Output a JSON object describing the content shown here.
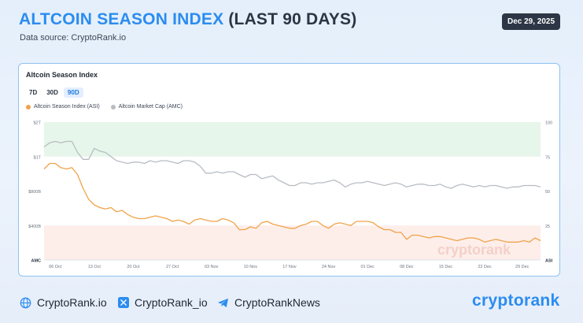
{
  "header": {
    "title_accent": "ALTCOIN SEASON INDEX",
    "title_rest": "(LAST 90 DAYS)",
    "source": "Data source: CryptoRank.io",
    "date": "Dec 29, 2025"
  },
  "card": {
    "title": "Altcoin Season Index",
    "ranges": [
      "7D",
      "30D",
      "90D"
    ],
    "active_range": "90D"
  },
  "colors": {
    "asi": "#f0a34a",
    "amc": "#b8bdc3",
    "accent": "#2b8cf0",
    "green_zone": "#e7f6ea",
    "red_zone": "#fdeeea"
  },
  "chart_data": {
    "type": "line",
    "legend_placement": "top-left",
    "left_axis": {
      "label": "AMC",
      "ticks": [
        "$2T",
        "$1T",
        "$800B",
        "$400B"
      ]
    },
    "right_axis": {
      "label": "ASI",
      "ticks": [
        "100",
        "75",
        "50",
        "25"
      ],
      "ylim": [
        0,
        100
      ]
    },
    "x_ticks": [
      "06 Oct",
      "13 Oct",
      "20 Oct",
      "27 Oct",
      "03 Nov",
      "10 Nov",
      "17 Nov",
      "24 Nov",
      "01 Dec",
      "08 Dec",
      "15 Dec",
      "22 Dec",
      "29 Dec"
    ],
    "zones": [
      {
        "name": "altcoin-season",
        "from": 75,
        "to": 100
      },
      {
        "name": "bitcoin-season",
        "from": 0,
        "to": 25
      }
    ],
    "series": [
      {
        "name": "Altcoin Season Index (ASI)",
        "axis": "right",
        "x": [
          0,
          1,
          2,
          3,
          4,
          5,
          6,
          7,
          8,
          9,
          10,
          11,
          12,
          13,
          14,
          15,
          16,
          17,
          18,
          19,
          20,
          21,
          22,
          23,
          24,
          25,
          26,
          27,
          28,
          29,
          30,
          31,
          32,
          33,
          34,
          35,
          36,
          37,
          38,
          39,
          40,
          41,
          42,
          43,
          44,
          45,
          46,
          47,
          48,
          49,
          50,
          51,
          52,
          53,
          54,
          55,
          56,
          57,
          58,
          59,
          60,
          61,
          62,
          63,
          64,
          65,
          66,
          67,
          68,
          69,
          70,
          71,
          72,
          73,
          74,
          75,
          76,
          77,
          78,
          79,
          80,
          81,
          82,
          83,
          84,
          85,
          86,
          87,
          88,
          89
        ],
        "values": [
          66,
          70,
          70,
          67,
          66,
          67,
          62,
          52,
          44,
          40,
          38,
          37,
          38,
          35,
          36,
          33,
          31,
          30,
          30,
          31,
          32,
          31,
          30,
          28,
          29,
          28,
          26,
          29,
          30,
          29,
          28,
          28,
          30,
          29,
          27,
          22,
          22,
          24,
          23,
          27,
          28,
          26,
          25,
          24,
          23,
          23,
          25,
          26,
          28,
          28,
          25,
          23,
          26,
          27,
          26,
          25,
          28,
          28,
          28,
          27,
          24,
          22,
          22,
          20,
          20,
          15,
          18,
          18,
          17,
          16,
          17,
          17,
          16,
          15,
          14,
          15,
          16,
          16,
          15,
          13,
          14,
          15,
          14,
          13,
          13,
          13,
          14,
          13,
          16,
          14
        ]
      },
      {
        "name": "Altcoin Market Cap (AMC)",
        "axis": "left",
        "x": [
          0,
          1,
          2,
          3,
          4,
          5,
          6,
          7,
          8,
          9,
          10,
          11,
          12,
          13,
          14,
          15,
          16,
          17,
          18,
          19,
          20,
          21,
          22,
          23,
          24,
          25,
          26,
          27,
          28,
          29,
          30,
          31,
          32,
          33,
          34,
          35,
          36,
          37,
          38,
          39,
          40,
          41,
          42,
          43,
          44,
          45,
          46,
          47,
          48,
          49,
          50,
          51,
          52,
          53,
          54,
          55,
          56,
          57,
          58,
          59,
          60,
          61,
          62,
          63,
          64,
          65,
          66,
          67,
          68,
          69,
          70,
          71,
          72,
          73,
          74,
          75,
          76,
          77,
          78,
          79,
          80,
          81,
          82,
          83,
          84,
          85,
          86,
          87,
          88,
          89
        ],
        "values": [
          82,
          85,
          86,
          85,
          86,
          86,
          78,
          73,
          73,
          81,
          79,
          78,
          75,
          72,
          71,
          70,
          71,
          71,
          70,
          72,
          71,
          72,
          72,
          71,
          70,
          72,
          72,
          71,
          68,
          63,
          63,
          64,
          63,
          64,
          64,
          62,
          60,
          62,
          62,
          59,
          60,
          61,
          58,
          56,
          54,
          54,
          56,
          56,
          55,
          56,
          56,
          57,
          58,
          56,
          53,
          55,
          56,
          56,
          57,
          56,
          55,
          54,
          55,
          56,
          55,
          53,
          54,
          55,
          55,
          54,
          54,
          55,
          53,
          52,
          54,
          55,
          54,
          53,
          54,
          53,
          54,
          54,
          53,
          52,
          53,
          53,
          54,
          54,
          54,
          53
        ]
      }
    ]
  },
  "footer": {
    "links": [
      {
        "label": "CryptoRank.io",
        "icon": "globe-icon"
      },
      {
        "label": "CryptoRank_io",
        "icon": "x-logo-icon"
      },
      {
        "label": "CryptoRankNews",
        "icon": "telegram-icon"
      }
    ],
    "brand": "cryptorank",
    "watermark": "cryptorank"
  }
}
